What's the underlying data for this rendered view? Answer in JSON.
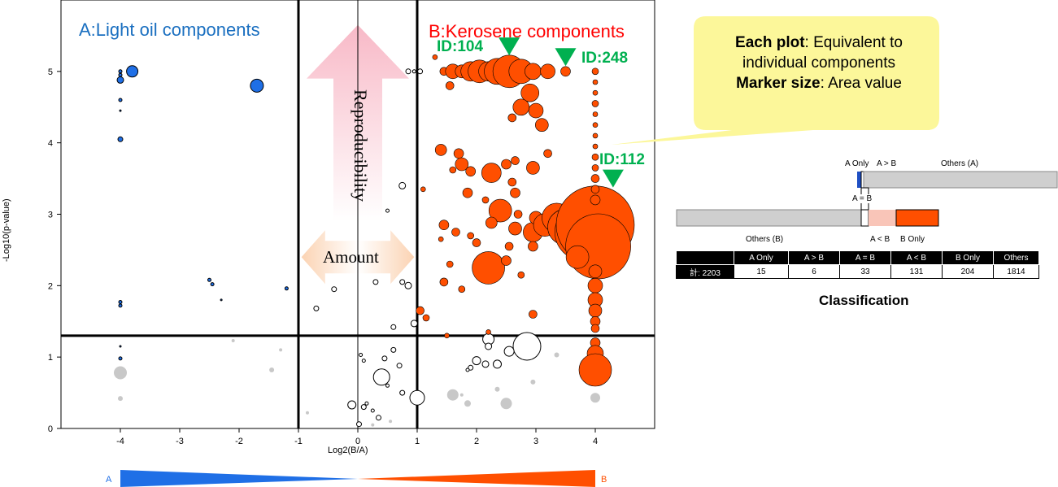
{
  "chart_data": {
    "type": "scatter",
    "title": "",
    "xlabel": "Log2(B/A)",
    "ylabel": "-Log10(p-value)",
    "xlim": [
      -5,
      5
    ],
    "ylim": [
      0,
      6
    ],
    "x_ticks": [
      "-4",
      "-3",
      "-2",
      "-1",
      "0",
      "1",
      "2",
      "3",
      "4"
    ],
    "y_ticks": [
      "0",
      "1",
      "2",
      "3",
      "4",
      "5"
    ],
    "threshold_lines": {
      "x": [
        -1,
        1
      ],
      "y": [
        1.3
      ]
    },
    "region_labels": {
      "A": "A:Light oil components",
      "B": "B:Kerosene components"
    },
    "id_labels": [
      "ID:104",
      "ID:248",
      "ID:112"
    ],
    "arrow_labels": {
      "vertical": "Reproducibility",
      "horizontal": "Amount"
    },
    "gradient_labels": {
      "left": "A",
      "right": "B"
    },
    "colors": {
      "A": "#1f6fe6",
      "B": "#ff4f00",
      "other": "#c8c8c8",
      "open": "#ffffff",
      "label_green": "#00b050",
      "label_blue": "#1a6fc0",
      "label_red": "#ff0000"
    },
    "series": [
      {
        "name": "A",
        "points": [
          {
            "x": -4.0,
            "y": 5.0,
            "s": 2
          },
          {
            "x": -4.0,
            "y": 4.95,
            "s": 2
          },
          {
            "x": -4.0,
            "y": 4.88,
            "s": 4
          },
          {
            "x": -3.8,
            "y": 5.0,
            "s": 7
          },
          {
            "x": -4.0,
            "y": 4.6,
            "s": 2
          },
          {
            "x": -4.0,
            "y": 4.45,
            "s": 1
          },
          {
            "x": -1.7,
            "y": 4.8,
            "s": 8
          },
          {
            "x": -4.0,
            "y": 4.05,
            "s": 3
          },
          {
            "x": -2.5,
            "y": 2.08,
            "s": 2
          },
          {
            "x": -2.45,
            "y": 2.02,
            "s": 2
          },
          {
            "x": -1.2,
            "y": 1.96,
            "s": 2
          },
          {
            "x": -2.3,
            "y": 1.8,
            "s": 1
          },
          {
            "x": -4.0,
            "y": 1.77,
            "s": 2
          },
          {
            "x": -4.0,
            "y": 1.72,
            "s": 2
          },
          {
            "x": -4.0,
            "y": 1.15,
            "s": 1
          },
          {
            "x": -4.0,
            "y": 0.98,
            "s": 2
          }
        ]
      },
      {
        "name": "B",
        "points": [
          {
            "x": 1.45,
            "y": 5.0,
            "s": 5
          },
          {
            "x": 1.6,
            "y": 5.0,
            "s": 9
          },
          {
            "x": 1.75,
            "y": 5.0,
            "s": 8
          },
          {
            "x": 1.9,
            "y": 5.0,
            "s": 12
          },
          {
            "x": 2.05,
            "y": 5.0,
            "s": 14
          },
          {
            "x": 2.2,
            "y": 5.0,
            "s": 12
          },
          {
            "x": 2.35,
            "y": 5.0,
            "s": 16
          },
          {
            "x": 2.55,
            "y": 5.0,
            "s": 20
          },
          {
            "x": 2.75,
            "y": 5.0,
            "s": 15
          },
          {
            "x": 2.95,
            "y": 5.0,
            "s": 10
          },
          {
            "x": 3.2,
            "y": 5.0,
            "s": 9
          },
          {
            "x": 3.5,
            "y": 5.0,
            "s": 6
          },
          {
            "x": 2.9,
            "y": 4.7,
            "s": 11
          },
          {
            "x": 3.0,
            "y": 4.45,
            "s": 9
          },
          {
            "x": 2.75,
            "y": 4.5,
            "s": 10
          },
          {
            "x": 3.1,
            "y": 4.25,
            "s": 8
          },
          {
            "x": 1.4,
            "y": 3.9,
            "s": 7
          },
          {
            "x": 1.7,
            "y": 3.85,
            "s": 6
          },
          {
            "x": 1.6,
            "y": 3.62,
            "s": 4
          },
          {
            "x": 1.75,
            "y": 3.7,
            "s": 8
          },
          {
            "x": 1.9,
            "y": 3.6,
            "s": 6
          },
          {
            "x": 2.25,
            "y": 3.58,
            "s": 12
          },
          {
            "x": 2.5,
            "y": 3.7,
            "s": 6
          },
          {
            "x": 2.65,
            "y": 3.75,
            "s": 5
          },
          {
            "x": 2.95,
            "y": 3.65,
            "s": 8
          },
          {
            "x": 3.2,
            "y": 3.85,
            "s": 5
          },
          {
            "x": 2.6,
            "y": 3.45,
            "s": 5
          },
          {
            "x": 2.65,
            "y": 3.3,
            "s": 6
          },
          {
            "x": 1.85,
            "y": 3.3,
            "s": 6
          },
          {
            "x": 2.15,
            "y": 3.2,
            "s": 4
          },
          {
            "x": 2.4,
            "y": 3.05,
            "s": 14
          },
          {
            "x": 2.7,
            "y": 3.0,
            "s": 5
          },
          {
            "x": 1.45,
            "y": 2.85,
            "s": 6
          },
          {
            "x": 1.65,
            "y": 2.75,
            "s": 5
          },
          {
            "x": 1.9,
            "y": 2.7,
            "s": 4
          },
          {
            "x": 2.0,
            "y": 2.6,
            "s": 5
          },
          {
            "x": 2.25,
            "y": 2.88,
            "s": 7
          },
          {
            "x": 2.65,
            "y": 2.8,
            "s": 8
          },
          {
            "x": 2.55,
            "y": 2.55,
            "s": 5
          },
          {
            "x": 2.95,
            "y": 2.75,
            "s": 12
          },
          {
            "x": 3.0,
            "y": 2.95,
            "s": 8
          },
          {
            "x": 3.15,
            "y": 2.85,
            "s": 14
          },
          {
            "x": 3.35,
            "y": 2.95,
            "s": 18
          },
          {
            "x": 3.5,
            "y": 2.82,
            "s": 22
          },
          {
            "x": 3.8,
            "y": 2.75,
            "s": 35
          },
          {
            "x": 4.0,
            "y": 2.85,
            "s": 48
          },
          {
            "x": 4.05,
            "y": 2.55,
            "s": 40
          },
          {
            "x": 3.7,
            "y": 2.4,
            "s": 14
          },
          {
            "x": 2.95,
            "y": 2.55,
            "s": 6
          },
          {
            "x": 1.4,
            "y": 2.65,
            "s": 3
          },
          {
            "x": 1.55,
            "y": 2.3,
            "s": 4
          },
          {
            "x": 2.2,
            "y": 2.25,
            "s": 20
          },
          {
            "x": 2.5,
            "y": 2.35,
            "s": 6
          },
          {
            "x": 1.45,
            "y": 2.05,
            "s": 5
          },
          {
            "x": 1.75,
            "y": 1.95,
            "s": 4
          },
          {
            "x": 1.05,
            "y": 1.65,
            "s": 5
          },
          {
            "x": 1.15,
            "y": 1.55,
            "s": 4
          },
          {
            "x": 2.95,
            "y": 1.6,
            "s": 5
          },
          {
            "x": 1.3,
            "y": 5.2,
            "s": 3
          },
          {
            "x": 1.55,
            "y": 4.8,
            "s": 5
          },
          {
            "x": 2.6,
            "y": 4.35,
            "s": 5
          },
          {
            "x": 2.2,
            "y": 1.35,
            "s": 3
          },
          {
            "x": 1.5,
            "y": 1.3,
            "s": 3
          },
          {
            "x": 2.75,
            "y": 2.15,
            "s": 4
          },
          {
            "x": 1.1,
            "y": 3.35,
            "s": 3
          },
          {
            "x": 4.0,
            "y": 5.0,
            "s": 4
          },
          {
            "x": 4.0,
            "y": 4.85,
            "s": 3
          },
          {
            "x": 4.0,
            "y": 4.7,
            "s": 3
          },
          {
            "x": 4.0,
            "y": 4.55,
            "s": 4
          },
          {
            "x": 4.0,
            "y": 4.4,
            "s": 3
          },
          {
            "x": 4.0,
            "y": 4.25,
            "s": 3
          },
          {
            "x": 4.0,
            "y": 4.1,
            "s": 3
          },
          {
            "x": 4.0,
            "y": 3.95,
            "s": 3
          },
          {
            "x": 4.0,
            "y": 3.8,
            "s": 4
          },
          {
            "x": 4.0,
            "y": 3.65,
            "s": 4
          },
          {
            "x": 4.0,
            "y": 3.5,
            "s": 5
          },
          {
            "x": 4.0,
            "y": 3.35,
            "s": 5
          },
          {
            "x": 4.0,
            "y": 3.2,
            "s": 6
          },
          {
            "x": 4.0,
            "y": 2.2,
            "s": 8
          },
          {
            "x": 4.0,
            "y": 2.0,
            "s": 9
          },
          {
            "x": 4.0,
            "y": 1.8,
            "s": 9
          },
          {
            "x": 4.0,
            "y": 1.65,
            "s": 8
          },
          {
            "x": 4.0,
            "y": 1.5,
            "s": 6
          },
          {
            "x": 4.0,
            "y": 1.4,
            "s": 5
          },
          {
            "x": 4.0,
            "y": 1.2,
            "s": 6
          },
          {
            "x": 4.0,
            "y": 1.05,
            "s": 10
          },
          {
            "x": 4.0,
            "y": 0.82,
            "s": 20
          }
        ]
      },
      {
        "name": "other-open",
        "points": [
          {
            "x": 0.85,
            "y": 5.0,
            "s": 3
          },
          {
            "x": 0.95,
            "y": 5.0,
            "s": 2
          },
          {
            "x": 1.05,
            "y": 5.0,
            "s": 3
          },
          {
            "x": 0.75,
            "y": 3.4,
            "s": 4
          },
          {
            "x": 0.5,
            "y": 3.05,
            "s": 2
          },
          {
            "x": -0.4,
            "y": 1.95,
            "s": 3
          },
          {
            "x": 0.3,
            "y": 2.05,
            "s": 3
          },
          {
            "x": 0.75,
            "y": 2.05,
            "s": 3
          },
          {
            "x": 0.85,
            "y": 2.0,
            "s": 4
          },
          {
            "x": -0.7,
            "y": 1.68,
            "s": 3
          },
          {
            "x": 0.95,
            "y": 1.47,
            "s": 4
          },
          {
            "x": 0.6,
            "y": 1.42,
            "s": 3
          },
          {
            "x": 2.2,
            "y": 1.25,
            "s": 7
          },
          {
            "x": 2.85,
            "y": 1.15,
            "s": 17
          },
          {
            "x": 2.55,
            "y": 1.08,
            "s": 6
          },
          {
            "x": 2.2,
            "y": 1.15,
            "s": 4
          },
          {
            "x": 2.0,
            "y": 0.95,
            "s": 5
          },
          {
            "x": 2.15,
            "y": 0.9,
            "s": 4
          },
          {
            "x": 2.35,
            "y": 0.9,
            "s": 5
          },
          {
            "x": 1.9,
            "y": 0.85,
            "s": 3
          },
          {
            "x": 1.85,
            "y": 0.82,
            "s": 2
          },
          {
            "x": 0.05,
            "y": 1.03,
            "s": 2
          },
          {
            "x": 0.6,
            "y": 1.1,
            "s": 3
          },
          {
            "x": 0.45,
            "y": 0.98,
            "s": 3
          },
          {
            "x": 0.1,
            "y": 0.95,
            "s": 2
          },
          {
            "x": 0.4,
            "y": 0.72,
            "s": 10
          },
          {
            "x": 0.7,
            "y": 0.88,
            "s": 3
          },
          {
            "x": 0.75,
            "y": 0.5,
            "s": 3
          },
          {
            "x": 1.0,
            "y": 0.43,
            "s": 9
          },
          {
            "x": -0.1,
            "y": 0.33,
            "s": 5
          },
          {
            "x": 0.1,
            "y": 0.3,
            "s": 3
          },
          {
            "x": 0.15,
            "y": 0.35,
            "s": 2
          },
          {
            "x": 0.25,
            "y": 0.25,
            "s": 2
          },
          {
            "x": 0.35,
            "y": 0.15,
            "s": 3
          },
          {
            "x": 0.02,
            "y": 0.06,
            "s": 3
          },
          {
            "x": 0.5,
            "y": 0.6,
            "s": 2
          }
        ]
      },
      {
        "name": "other-gray",
        "points": [
          {
            "x": -4.0,
            "y": 0.78,
            "s": 8
          },
          {
            "x": -4.0,
            "y": 0.42,
            "s": 3
          },
          {
            "x": -2.1,
            "y": 1.23,
            "s": 2
          },
          {
            "x": -1.3,
            "y": 1.1,
            "s": 2
          },
          {
            "x": -1.45,
            "y": 0.82,
            "s": 3
          },
          {
            "x": 1.6,
            "y": 0.47,
            "s": 7
          },
          {
            "x": 1.75,
            "y": 0.47,
            "s": 2
          },
          {
            "x": 2.5,
            "y": 0.35,
            "s": 7
          },
          {
            "x": 1.85,
            "y": 0.35,
            "s": 4
          },
          {
            "x": 2.35,
            "y": 0.55,
            "s": 3
          },
          {
            "x": 2.95,
            "y": 0.65,
            "s": 3
          },
          {
            "x": 3.35,
            "y": 1.03,
            "s": 3
          },
          {
            "x": 4.0,
            "y": 0.43,
            "s": 6
          },
          {
            "x": 0.25,
            "y": 0.05,
            "s": 2
          },
          {
            "x": 0.55,
            "y": 0.1,
            "s": 2
          },
          {
            "x": -0.85,
            "y": 0.22,
            "s": 2
          }
        ]
      }
    ]
  },
  "callout": {
    "line1_bold": "Each plot",
    "line1_rest": ": Equivalent to",
    "line2": "individual components",
    "line3_bold": "Marker size",
    "line3_rest": ": Area value"
  },
  "classification": {
    "title": "Classification",
    "bar_labels": {
      "a_only": "A Only",
      "a_gt_b": "A > B",
      "others_a": "Others (A)",
      "a_eq_b": "A = B",
      "others_b": "Others (B)",
      "a_lt_b": "A < B",
      "b_only": "B Only"
    },
    "table": {
      "headers": [
        "",
        "A Only",
        "A > B",
        "A = B",
        "A < B",
        "B Only",
        "Others"
      ],
      "row": [
        "計: 2203",
        "15",
        "6",
        "33",
        "131",
        "204",
        "1814"
      ]
    }
  }
}
